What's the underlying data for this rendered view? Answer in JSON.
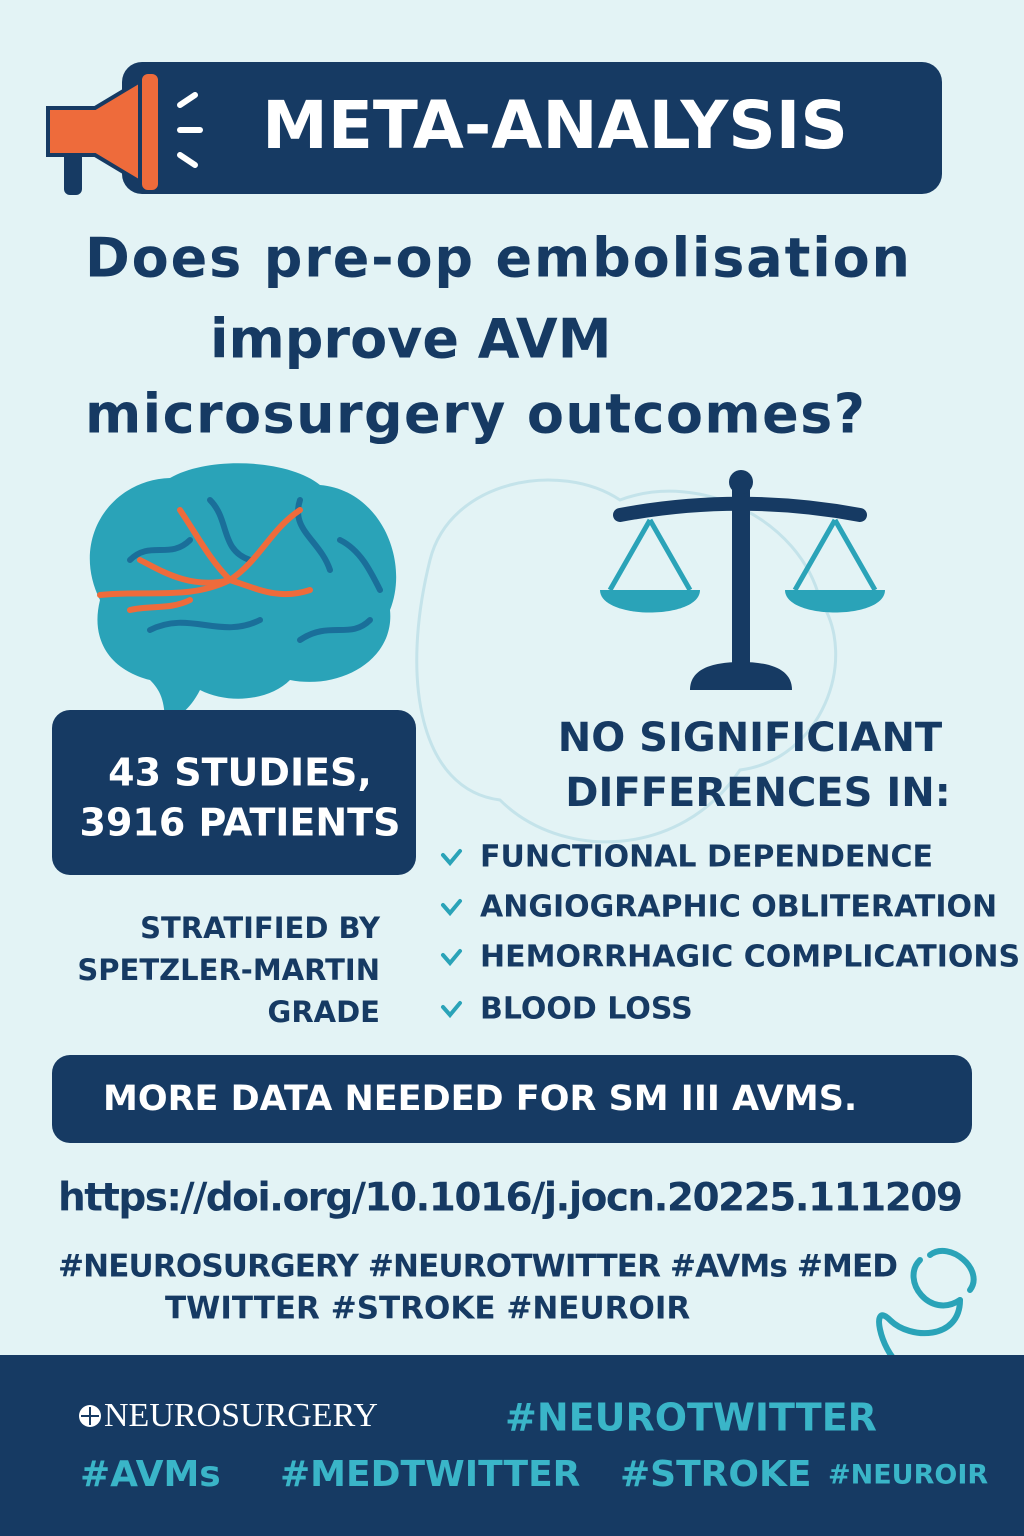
{
  "header": {
    "badge": "META-ANALYSIS"
  },
  "question": [
    "Does pre-op embolisation",
    "improve AVM",
    "microsurgery outcomes?"
  ],
  "stats": [
    "43 STUDIES,",
    "3916 PATIENTS"
  ],
  "stratified": [
    "STRATIFIED BY",
    "SPETZLER-MARTIN",
    "GRADE"
  ],
  "findings": {
    "heading": [
      "NO SIGNIFICIANT",
      "DIFFERENCES IN:"
    ],
    "items": [
      "FUNCTIONAL DEPENDENCE",
      "ANGIOGRAPHIC OBLITERATION",
      "HEMORRHAGIC COMPLICATIONS",
      "BLOOD LOSS"
    ]
  },
  "conclusion": "MORE DATA NEEDED FOR SM III AVMS.",
  "doi": "https://doi.org/10.1016/j.jocn.20225.111209",
  "hashtags": [
    "#NEUROSURGERY #NEUROTWITTER #AVMs #MED",
    "TWITTER #STROKE #NEUROIR"
  ],
  "footer": {
    "brand": "NEUROSURGERY",
    "tags": [
      "#NEUROTWITTER",
      "#AVMs",
      "#MEDTWITTER",
      "#STROKE",
      "#NEUROIR"
    ]
  }
}
